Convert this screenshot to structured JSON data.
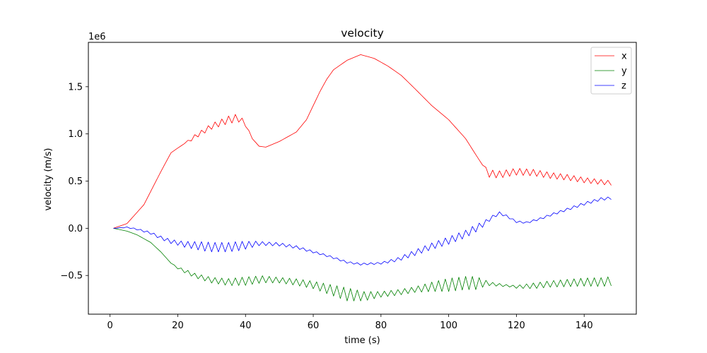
{
  "chart_data": {
    "type": "line",
    "title": "velocity",
    "xlabel": "time (s)",
    "ylabel": "velocity (m/s)",
    "y_offset_label": "1e6",
    "xlim": [
      -6.4,
      155.4
    ],
    "ylim": [
      -0.91,
      1.97
    ],
    "x_ticks": [
      0,
      20,
      40,
      60,
      80,
      100,
      120,
      140
    ],
    "x_tick_labels": [
      "0",
      "20",
      "40",
      "60",
      "80",
      "100",
      "120",
      "140"
    ],
    "y_ticks": [
      -0.5,
      0.0,
      0.5,
      1.0,
      1.5
    ],
    "y_tick_labels": [
      "−0.5",
      "0.0",
      "0.5",
      "1.0",
      "1.5"
    ],
    "grid": false,
    "legend_position": "top-right",
    "x_start": 1,
    "x_end": 148,
    "series": [
      {
        "name": "x",
        "color": "#ff0000",
        "anchors": [
          [
            1,
            0
          ],
          [
            5,
            0.05
          ],
          [
            10,
            0.25
          ],
          [
            15,
            0.6
          ],
          [
            18,
            0.8
          ],
          [
            20,
            0.85
          ],
          [
            25,
            0.97
          ],
          [
            30,
            1.08
          ],
          [
            35,
            1.15
          ],
          [
            38,
            1.17
          ],
          [
            40,
            1.1
          ],
          [
            42,
            0.95
          ],
          [
            44,
            0.87
          ],
          [
            46,
            0.86
          ],
          [
            50,
            0.92
          ],
          [
            55,
            1.02
          ],
          [
            58,
            1.15
          ],
          [
            60,
            1.3
          ],
          [
            62,
            1.45
          ],
          [
            64,
            1.58
          ],
          [
            66,
            1.68
          ],
          [
            70,
            1.78
          ],
          [
            74,
            1.84
          ],
          [
            78,
            1.8
          ],
          [
            82,
            1.72
          ],
          [
            86,
            1.62
          ],
          [
            90,
            1.48
          ],
          [
            95,
            1.3
          ],
          [
            100,
            1.15
          ],
          [
            105,
            0.95
          ],
          [
            108,
            0.78
          ],
          [
            110,
            0.67
          ],
          [
            112,
            0.58
          ],
          [
            115,
            0.57
          ],
          [
            120,
            0.6
          ],
          [
            125,
            0.59
          ],
          [
            130,
            0.56
          ],
          [
            135,
            0.54
          ],
          [
            140,
            0.51
          ],
          [
            145,
            0.49
          ],
          [
            148,
            0.48
          ]
        ],
        "osc": [
          [
            1,
            0
          ],
          [
            22,
            0
          ],
          [
            24,
            0.02
          ],
          [
            38,
            0.045
          ],
          [
            40,
            0.02
          ],
          [
            42,
            0
          ],
          [
            110,
            0
          ],
          [
            112,
            0.04
          ],
          [
            148,
            0.025
          ]
        ]
      },
      {
        "name": "y",
        "color": "#008000",
        "anchors": [
          [
            1,
            0
          ],
          [
            5,
            -0.03
          ],
          [
            8,
            -0.07
          ],
          [
            12,
            -0.15
          ],
          [
            15,
            -0.25
          ],
          [
            18,
            -0.37
          ],
          [
            20,
            -0.42
          ],
          [
            25,
            -0.5
          ],
          [
            30,
            -0.55
          ],
          [
            35,
            -0.57
          ],
          [
            40,
            -0.56
          ],
          [
            45,
            -0.54
          ],
          [
            50,
            -0.55
          ],
          [
            55,
            -0.57
          ],
          [
            60,
            -0.6
          ],
          [
            65,
            -0.65
          ],
          [
            70,
            -0.7
          ],
          [
            75,
            -0.72
          ],
          [
            80,
            -0.7
          ],
          [
            85,
            -0.68
          ],
          [
            90,
            -0.65
          ],
          [
            95,
            -0.62
          ],
          [
            100,
            -0.6
          ],
          [
            105,
            -0.58
          ],
          [
            110,
            -0.58
          ],
          [
            115,
            -0.6
          ],
          [
            120,
            -0.62
          ],
          [
            125,
            -0.61
          ],
          [
            130,
            -0.59
          ],
          [
            135,
            -0.58
          ],
          [
            140,
            -0.57
          ],
          [
            145,
            -0.57
          ],
          [
            148,
            -0.56
          ]
        ],
        "osc": [
          [
            1,
            0
          ],
          [
            18,
            0
          ],
          [
            22,
            0.02
          ],
          [
            30,
            0.03
          ],
          [
            40,
            0.045
          ],
          [
            50,
            0.03
          ],
          [
            60,
            0.04
          ],
          [
            70,
            0.07
          ],
          [
            80,
            0.03
          ],
          [
            90,
            0.03
          ],
          [
            100,
            0.07
          ],
          [
            108,
            0.07
          ],
          [
            112,
            0.02
          ],
          [
            118,
            0.01
          ],
          [
            125,
            0.03
          ],
          [
            148,
            0.05
          ]
        ]
      },
      {
        "name": "z",
        "color": "#0000ff",
        "anchors": [
          [
            1,
            0
          ],
          [
            5,
            0.01
          ],
          [
            8,
            -0.01
          ],
          [
            12,
            -0.05
          ],
          [
            15,
            -0.1
          ],
          [
            18,
            -0.14
          ],
          [
            22,
            -0.17
          ],
          [
            30,
            -0.2
          ],
          [
            35,
            -0.2
          ],
          [
            40,
            -0.18
          ],
          [
            44,
            -0.16
          ],
          [
            50,
            -0.17
          ],
          [
            55,
            -0.2
          ],
          [
            60,
            -0.25
          ],
          [
            65,
            -0.3
          ],
          [
            70,
            -0.36
          ],
          [
            74,
            -0.38
          ],
          [
            80,
            -0.37
          ],
          [
            85,
            -0.33
          ],
          [
            90,
            -0.26
          ],
          [
            95,
            -0.19
          ],
          [
            100,
            -0.13
          ],
          [
            105,
            -0.06
          ],
          [
            110,
            0.04
          ],
          [
            113,
            0.12
          ],
          [
            115,
            0.16
          ],
          [
            117,
            0.13
          ],
          [
            120,
            0.07
          ],
          [
            123,
            0.06
          ],
          [
            127,
            0.1
          ],
          [
            130,
            0.14
          ],
          [
            135,
            0.2
          ],
          [
            140,
            0.26
          ],
          [
            145,
            0.31
          ],
          [
            148,
            0.32
          ]
        ],
        "osc": [
          [
            1,
            0
          ],
          [
            10,
            0.01
          ],
          [
            20,
            0.025
          ],
          [
            28,
            0.05
          ],
          [
            38,
            0.05
          ],
          [
            45,
            0.02
          ],
          [
            55,
            0.015
          ],
          [
            62,
            0.01
          ],
          [
            70,
            0.01
          ],
          [
            80,
            0.01
          ],
          [
            90,
            0.03
          ],
          [
            100,
            0.04
          ],
          [
            108,
            0.04
          ],
          [
            112,
            0.02
          ],
          [
            118,
            0.01
          ],
          [
            125,
            0.01
          ],
          [
            140,
            0.015
          ],
          [
            148,
            0.015
          ]
        ]
      }
    ]
  }
}
